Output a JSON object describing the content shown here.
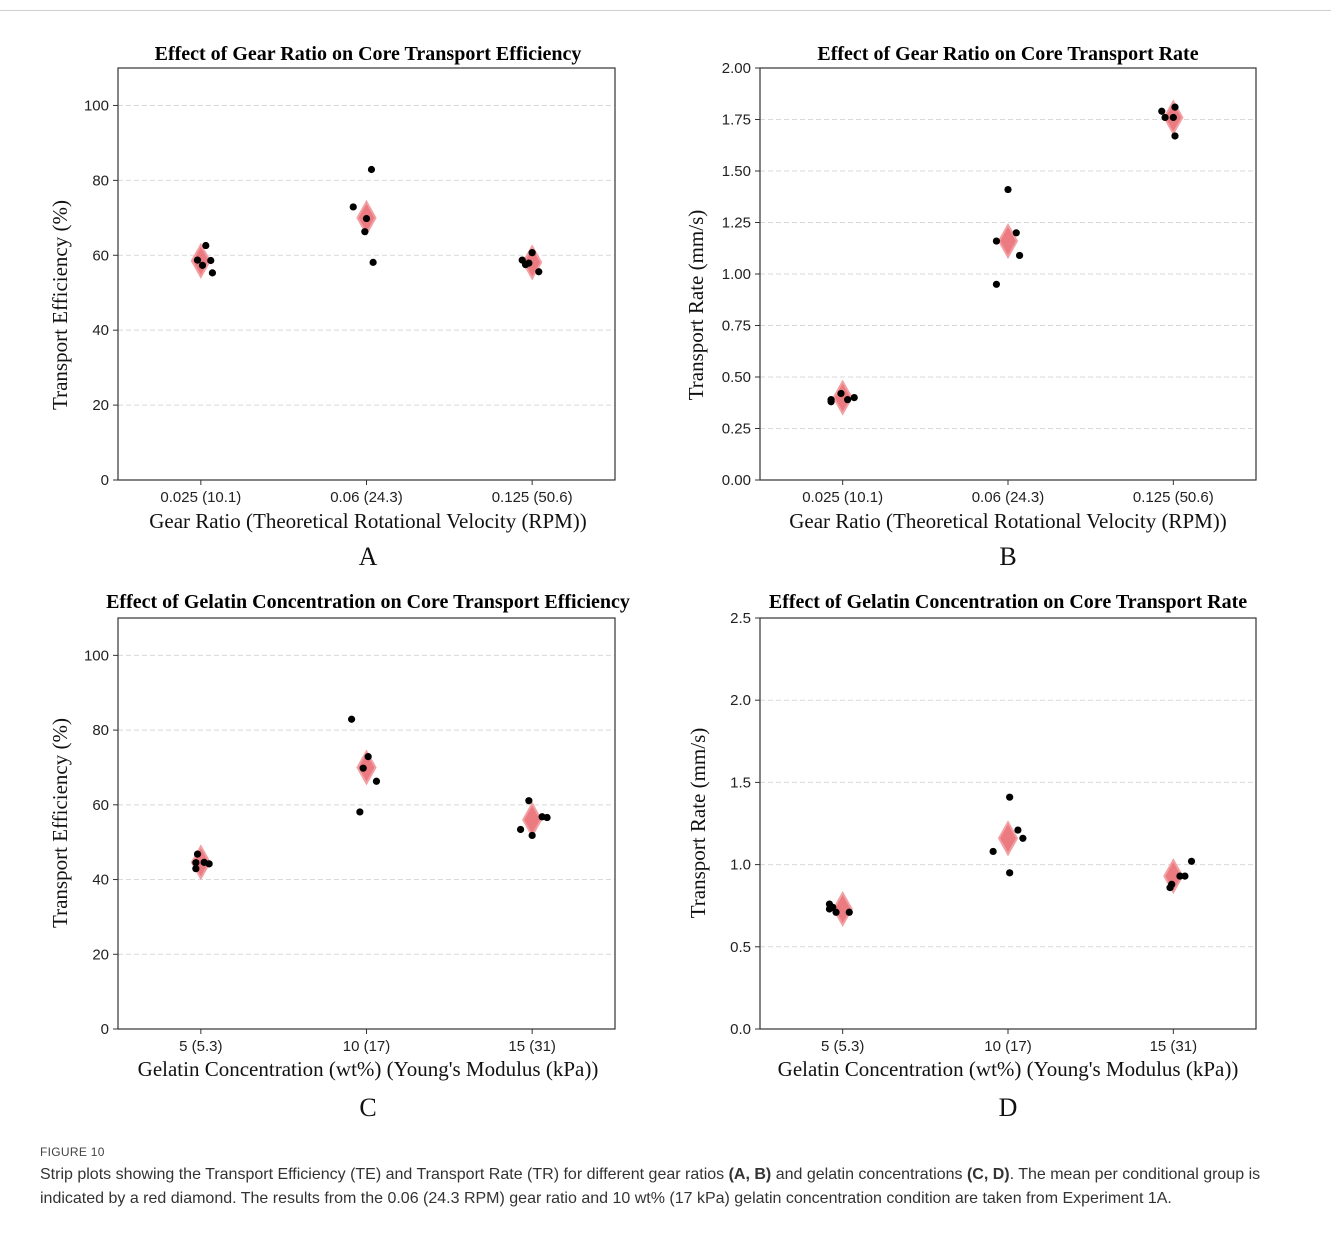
{
  "figure": {
    "label": "FIGURE 10",
    "caption": {
      "p1": "Strip plots showing the Transport Efficiency (TE) and Transport Rate (TR) for different gear ratios ",
      "b1": "(A, B)",
      "p2": " and gelatin concentrations ",
      "b2": "(C, D)",
      "p3": ". The mean per conditional group is indicated by a red diamond. The results from the 0.06 (24.3 RPM) gear ratio and 10 wt% (17 kPa) gelatin concentration condition are taken from Experiment 1A."
    }
  },
  "chart_data": [
    {
      "panel": "A",
      "type": "scatter",
      "title": "Effect of Gear Ratio on Core Transport Efficiency",
      "xlabel": "Gear Ratio (Theoretical Rotational Velocity (RPM))",
      "ylabel": "Transport Efficiency (%)",
      "categories": [
        "0.025 (10.1)",
        "0.06 (24.3)",
        "0.125 (50.6)"
      ],
      "ylim": [
        0,
        110
      ],
      "yticks": [
        0,
        20,
        40,
        60,
        80,
        100
      ],
      "ytick_labels": [
        "0",
        "20",
        "40",
        "60",
        "80",
        "100"
      ],
      "grid": "horizontal dashed",
      "points": [
        {
          "category": 0,
          "jitter": -0.02,
          "y": 58.7
        },
        {
          "category": 0,
          "jitter": 0.03,
          "y": 62.6
        },
        {
          "category": 0,
          "jitter": 0.01,
          "y": 57.3
        },
        {
          "category": 0,
          "jitter": 0.06,
          "y": 58.6
        },
        {
          "category": 0,
          "jitter": 0.07,
          "y": 55.3
        },
        {
          "category": 1,
          "jitter": -0.08,
          "y": 72.9
        },
        {
          "category": 1,
          "jitter": 0.03,
          "y": 82.9
        },
        {
          "category": 1,
          "jitter": 0.0,
          "y": 69.8
        },
        {
          "category": 1,
          "jitter": -0.01,
          "y": 66.3
        },
        {
          "category": 1,
          "jitter": 0.04,
          "y": 58.1
        },
        {
          "category": 2,
          "jitter": -0.06,
          "y": 58.7
        },
        {
          "category": 2,
          "jitter": 0.0,
          "y": 60.7
        },
        {
          "category": 2,
          "jitter": -0.04,
          "y": 57.5
        },
        {
          "category": 2,
          "jitter": -0.02,
          "y": 57.9
        },
        {
          "category": 2,
          "jitter": 0.04,
          "y": 55.6
        }
      ],
      "means": [
        58.5,
        70.0,
        58.1
      ]
    },
    {
      "panel": "B",
      "type": "scatter",
      "title": "Effect of Gear Ratio on Core Transport Rate",
      "xlabel": "Gear Ratio (Theoretical Rotational Velocity (RPM))",
      "ylabel": "Transport Rate (mm/s)",
      "categories": [
        "0.025 (10.1)",
        "0.06 (24.3)",
        "0.125 (50.6)"
      ],
      "ylim": [
        0,
        2.0
      ],
      "yticks": [
        0,
        0.25,
        0.5,
        0.75,
        1.0,
        1.25,
        1.5,
        1.75,
        2.0
      ],
      "ytick_labels": [
        "0.00",
        "0.25",
        "0.50",
        "0.75",
        "1.00",
        "1.25",
        "1.50",
        "1.75",
        "2.00"
      ],
      "grid": "horizontal dashed",
      "points": [
        {
          "category": 0,
          "jitter": -0.07,
          "y": 0.38
        },
        {
          "category": 0,
          "jitter": -0.07,
          "y": 0.39
        },
        {
          "category": 0,
          "jitter": -0.01,
          "y": 0.42
        },
        {
          "category": 0,
          "jitter": 0.03,
          "y": 0.39
        },
        {
          "category": 0,
          "jitter": 0.07,
          "y": 0.4
        },
        {
          "category": 1,
          "jitter": -0.07,
          "y": 1.16
        },
        {
          "category": 1,
          "jitter": -0.07,
          "y": 0.95
        },
        {
          "category": 1,
          "jitter": 0.0,
          "y": 1.41
        },
        {
          "category": 1,
          "jitter": 0.05,
          "y": 1.2
        },
        {
          "category": 1,
          "jitter": 0.07,
          "y": 1.09
        },
        {
          "category": 2,
          "jitter": -0.07,
          "y": 1.79
        },
        {
          "category": 2,
          "jitter": -0.05,
          "y": 1.76
        },
        {
          "category": 2,
          "jitter": 0.0,
          "y": 1.76
        },
        {
          "category": 2,
          "jitter": 0.01,
          "y": 1.81
        },
        {
          "category": 2,
          "jitter": 0.01,
          "y": 1.67
        }
      ],
      "means": [
        0.4,
        1.16,
        1.76
      ]
    },
    {
      "panel": "C",
      "type": "scatter",
      "title": "Effect of Gelatin Concentration on Core Transport Efficiency",
      "xlabel": "Gelatin Concentration (wt%) (Young's Modulus (kPa))",
      "ylabel": "Transport Efficiency (%)",
      "categories": [
        "5 (5.3)",
        "10 (17)",
        "15 (31)"
      ],
      "ylim": [
        0,
        110
      ],
      "yticks": [
        0,
        20,
        40,
        60,
        80,
        100
      ],
      "ytick_labels": [
        "0",
        "20",
        "40",
        "60",
        "80",
        "100"
      ],
      "grid": "horizontal dashed",
      "points": [
        {
          "category": 0,
          "jitter": -0.02,
          "y": 46.8
        },
        {
          "category": 0,
          "jitter": -0.03,
          "y": 44.5
        },
        {
          "category": 0,
          "jitter": -0.03,
          "y": 42.9
        },
        {
          "category": 0,
          "jitter": 0.02,
          "y": 44.6
        },
        {
          "category": 0,
          "jitter": 0.05,
          "y": 44.2
        },
        {
          "category": 1,
          "jitter": -0.09,
          "y": 82.9
        },
        {
          "category": 1,
          "jitter": 0.01,
          "y": 72.9
        },
        {
          "category": 1,
          "jitter": -0.02,
          "y": 69.8
        },
        {
          "category": 1,
          "jitter": 0.06,
          "y": 66.3
        },
        {
          "category": 1,
          "jitter": -0.04,
          "y": 58.1
        },
        {
          "category": 2,
          "jitter": -0.02,
          "y": 61.1
        },
        {
          "category": 2,
          "jitter": -0.07,
          "y": 53.4
        },
        {
          "category": 2,
          "jitter": 0.06,
          "y": 56.8
        },
        {
          "category": 2,
          "jitter": 0.09,
          "y": 56.6
        },
        {
          "category": 2,
          "jitter": 0.0,
          "y": 51.8
        }
      ],
      "means": [
        44.6,
        70.0,
        56.0
      ]
    },
    {
      "panel": "D",
      "type": "scatter",
      "title": "Effect of Gelatin Concentration on Core Transport Rate",
      "xlabel": "Gelatin Concentration (wt%) (Young's Modulus (kPa))",
      "ylabel": "Transport Rate (mm/s)",
      "categories": [
        "5 (5.3)",
        "10 (17)",
        "15 (31)"
      ],
      "ylim": [
        0,
        2.5
      ],
      "yticks": [
        0,
        0.5,
        1.0,
        1.5,
        2.0,
        2.5
      ],
      "ytick_labels": [
        "0.0",
        "0.5",
        "1.0",
        "1.5",
        "2.0",
        "2.5"
      ],
      "grid": "horizontal dashed",
      "points": [
        {
          "category": 0,
          "jitter": -0.08,
          "y": 0.76
        },
        {
          "category": 0,
          "jitter": -0.08,
          "y": 0.73
        },
        {
          "category": 0,
          "jitter": -0.04,
          "y": 0.71
        },
        {
          "category": 0,
          "jitter": -0.06,
          "y": 0.74
        },
        {
          "category": 0,
          "jitter": 0.04,
          "y": 0.71
        },
        {
          "category": 1,
          "jitter": -0.09,
          "y": 1.08
        },
        {
          "category": 1,
          "jitter": 0.01,
          "y": 1.41
        },
        {
          "category": 1,
          "jitter": 0.06,
          "y": 1.21
        },
        {
          "category": 1,
          "jitter": 0.09,
          "y": 1.16
        },
        {
          "category": 1,
          "jitter": 0.01,
          "y": 0.95
        },
        {
          "category": 2,
          "jitter": -0.02,
          "y": 0.86
        },
        {
          "category": 2,
          "jitter": -0.01,
          "y": 0.88
        },
        {
          "category": 2,
          "jitter": 0.04,
          "y": 0.93
        },
        {
          "category": 2,
          "jitter": 0.07,
          "y": 0.93
        },
        {
          "category": 2,
          "jitter": 0.11,
          "y": 1.02
        }
      ],
      "means": [
        0.73,
        1.16,
        0.93
      ]
    }
  ],
  "colors": {
    "mean_marker": "#e8646a",
    "mean_marker_edge": "#f2a0a4",
    "point": "#000000",
    "grid": "#d9d9d9",
    "axis": "#333333"
  }
}
